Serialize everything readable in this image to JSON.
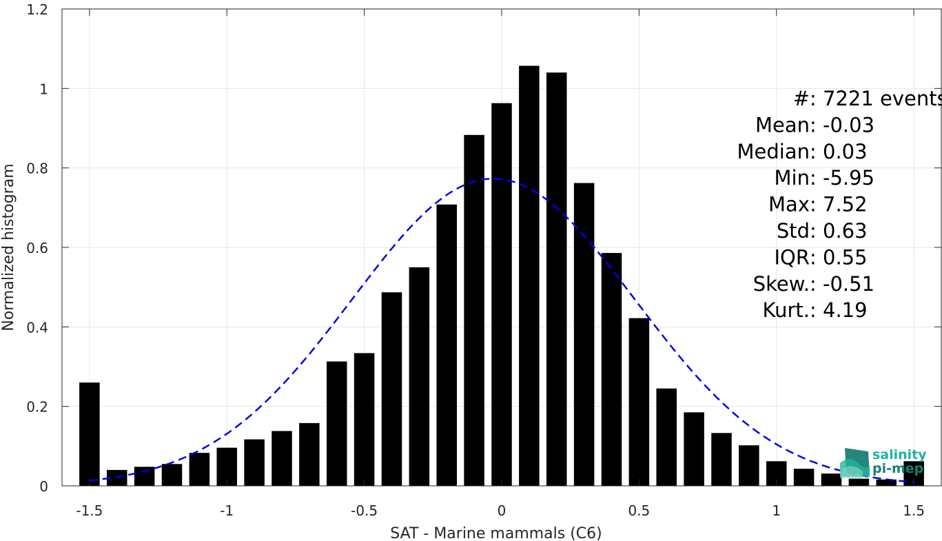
{
  "chart_data": {
    "type": "bar",
    "title": "",
    "xlabel": "SAT - Marine mammals (C6)",
    "ylabel": "Normalized histogram",
    "xlim": [
      -1.6,
      1.6
    ],
    "ylim": [
      0,
      1.2
    ],
    "grid": true,
    "xticks": [
      "-1.5",
      "-1",
      "-0.5",
      "0",
      "0.5",
      "1",
      "1.5"
    ],
    "yticks": [
      "0",
      "0.2",
      "0.4",
      "0.6",
      "0.8",
      "1",
      "1.2"
    ],
    "bar_color": "#000000",
    "bars": {
      "x": [
        -1.5,
        -1.4,
        -1.3,
        -1.2,
        -1.1,
        -1.0,
        -0.9,
        -0.8,
        -0.7,
        -0.6,
        -0.5,
        -0.4,
        -0.3,
        -0.2,
        -0.1,
        0.0,
        0.1,
        0.2,
        0.3,
        0.4,
        0.5,
        0.6,
        0.7,
        0.8,
        0.9,
        1.0,
        1.1,
        1.2,
        1.3,
        1.4,
        1.5
      ],
      "values": [
        0.26,
        0.04,
        0.048,
        0.055,
        0.083,
        0.096,
        0.117,
        0.138,
        0.158,
        0.313,
        0.334,
        0.487,
        0.55,
        0.708,
        0.883,
        0.963,
        1.057,
        1.04,
        0.762,
        0.586,
        0.422,
        0.245,
        0.185,
        0.133,
        0.102,
        0.062,
        0.043,
        0.031,
        0.018,
        0.016,
        0.062
      ]
    },
    "fit_curve": {
      "type": "gaussian",
      "style": "dashed",
      "color": "#0000ee",
      "mean": -0.03,
      "std": 0.515,
      "peak": 0.773,
      "x_range": [
        -1.5,
        1.5
      ]
    },
    "annotations": [
      {
        "label": "#  ",
        "value": ": 7221 events"
      },
      {
        "label": "Mean ",
        "value": ": -0.03"
      },
      {
        "label": "Median ",
        "value": ": 0.03"
      },
      {
        "label": "Min ",
        "value": ": -5.95"
      },
      {
        "label": "Max ",
        "value": ": 7.52"
      },
      {
        "label": "Std ",
        "value": ": 0.63"
      },
      {
        "label": "IQR ",
        "value": ": 0.55"
      },
      {
        "label": "Skew. ",
        "value": ": -0.51"
      },
      {
        "label": "Kurt. ",
        "value": ": 4.19"
      }
    ]
  },
  "logo": {
    "line1": "salinity",
    "line2": "pi-mep",
    "colors": [
      "#1fb59c",
      "#1a7f74",
      "#8fd9c6"
    ]
  }
}
